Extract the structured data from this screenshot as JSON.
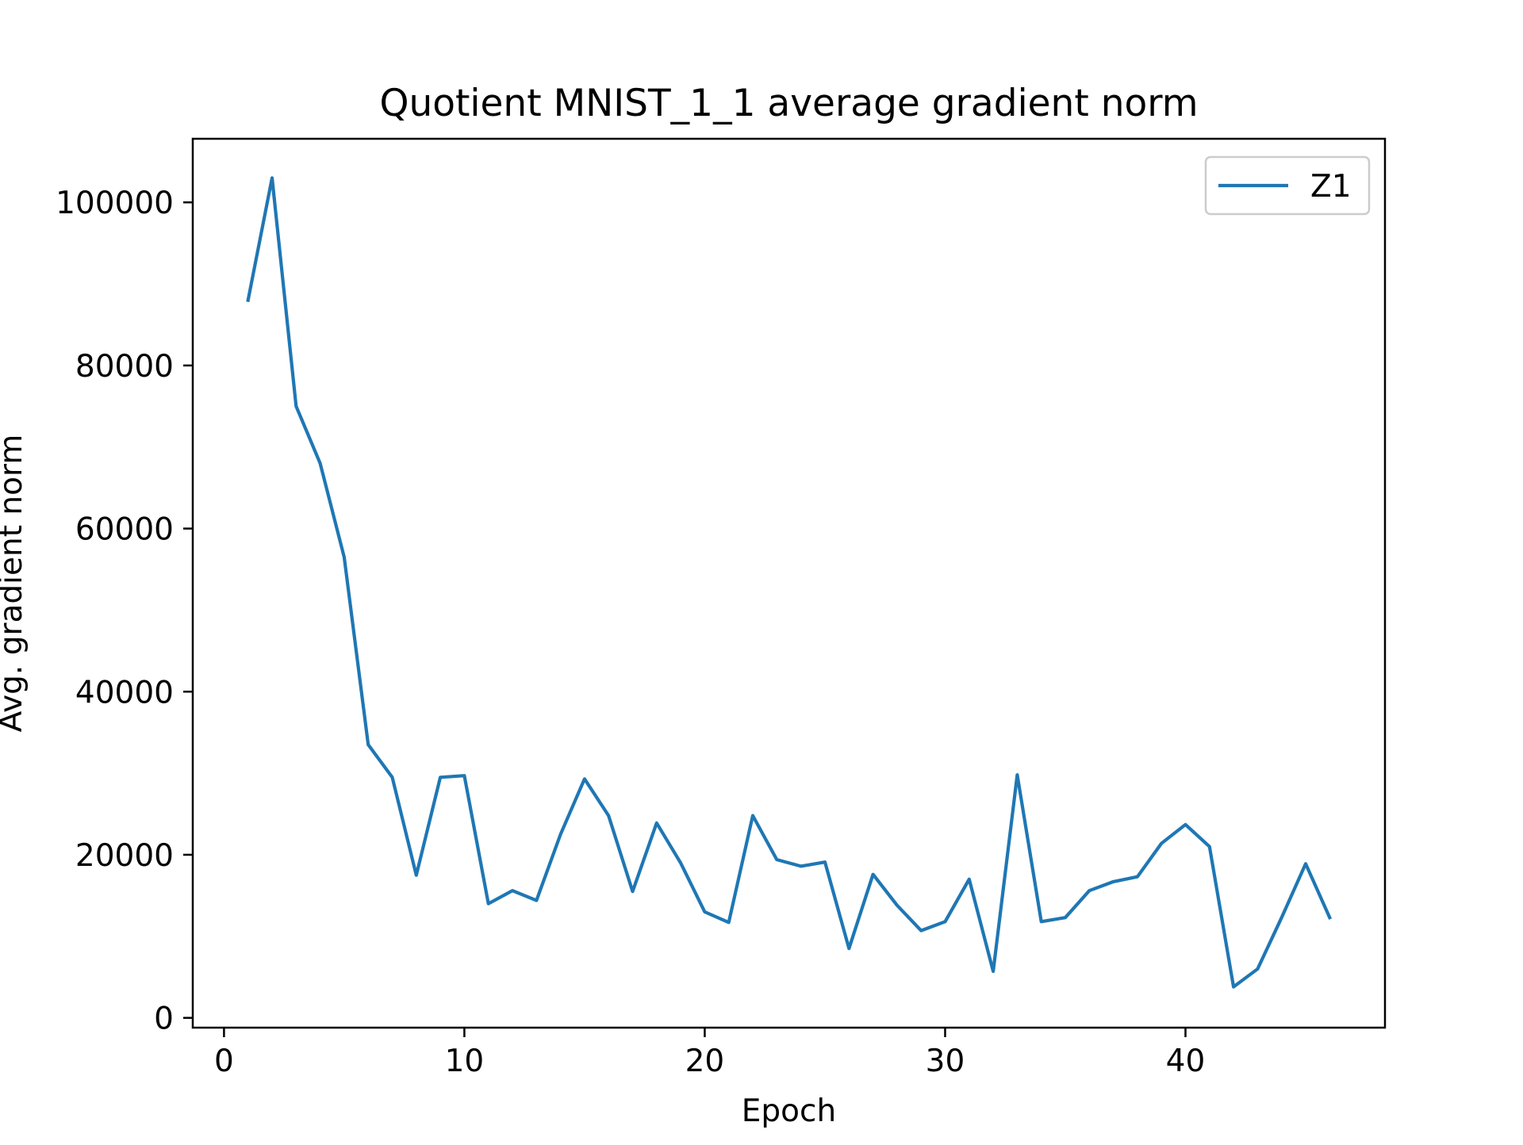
{
  "chart_data": {
    "type": "line",
    "title": "Quotient MNIST_1_1 average gradient norm",
    "xlabel": "Epoch",
    "ylabel": "Avg. gradient norm",
    "xlim": [
      -1.3,
      48.3
    ],
    "ylim": [
      -1200,
      107800
    ],
    "xticks": [
      0,
      10,
      20,
      30,
      40
    ],
    "yticks": [
      0,
      20000,
      40000,
      60000,
      80000,
      100000
    ],
    "grid": false,
    "legend_position": "top-right",
    "colors": {
      "Z1": "#1f77b4"
    },
    "x": [
      1,
      2,
      3,
      4,
      5,
      6,
      7,
      8,
      9,
      10,
      11,
      12,
      13,
      14,
      15,
      16,
      17,
      18,
      19,
      20,
      21,
      22,
      23,
      24,
      25,
      26,
      27,
      28,
      29,
      30,
      31,
      32,
      33,
      34,
      35,
      36,
      37,
      38,
      39,
      40,
      41,
      42,
      43,
      44,
      45,
      46
    ],
    "series": [
      {
        "name": "Z1",
        "values": [
          88000,
          103000,
          75000,
          68000,
          56500,
          33500,
          29500,
          17500,
          29500,
          29700,
          14000,
          15600,
          14400,
          22500,
          29300,
          24800,
          15500,
          23900,
          19000,
          13000,
          11700,
          24800,
          19400,
          18600,
          19100,
          8500,
          17600,
          13800,
          10700,
          11800,
          17000,
          5700,
          29800,
          11800,
          12300,
          15600,
          16700,
          17300,
          21400,
          23700,
          21000,
          3800,
          6000,
          12300,
          18900,
          12300
        ]
      }
    ]
  }
}
